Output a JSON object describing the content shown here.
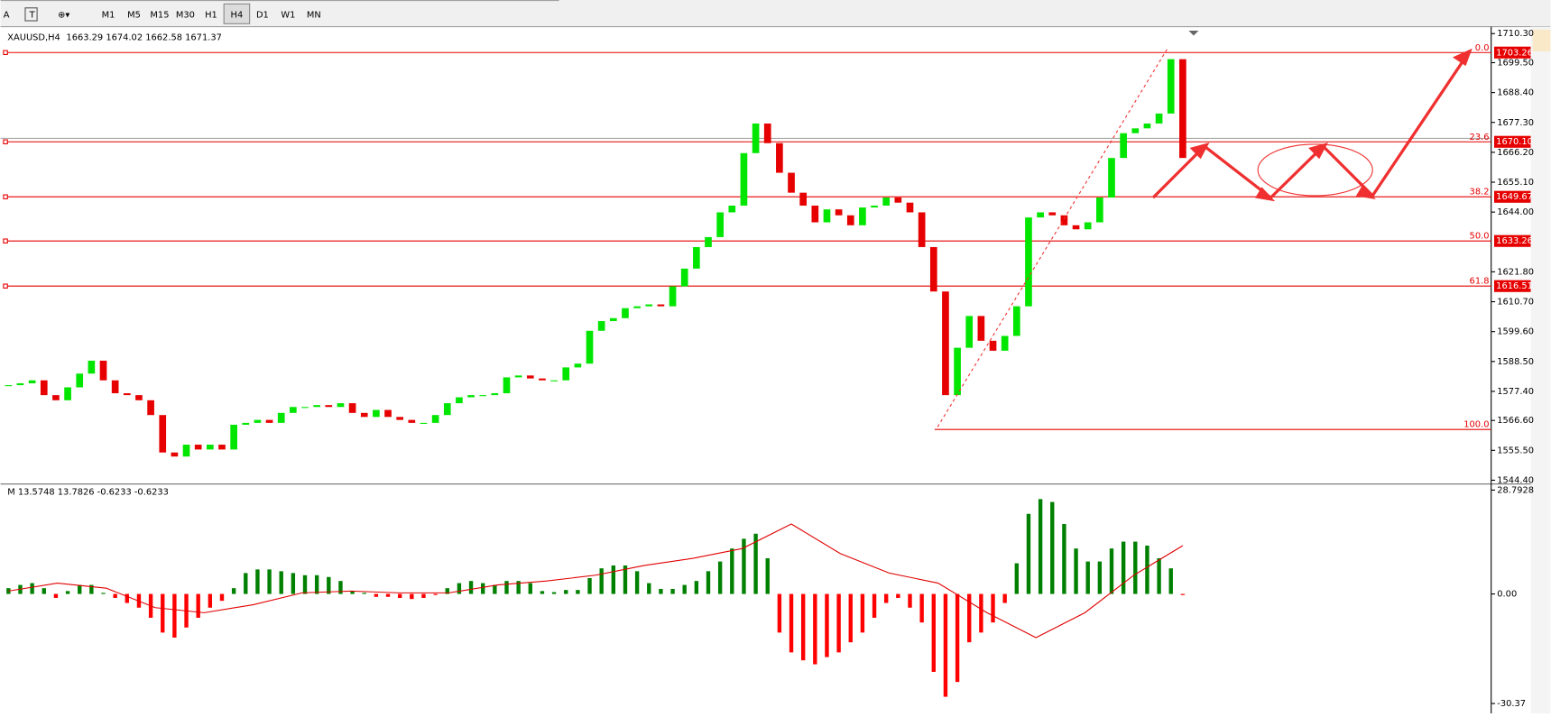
{
  "toolbar": {
    "tools": [
      "A",
      "T"
    ],
    "timeframes": [
      "M1",
      "M5",
      "M15",
      "M30",
      "H1",
      "H4",
      "D1",
      "W1",
      "MN"
    ],
    "active": 5
  },
  "chart_data": [
    {
      "type": "candlestick",
      "title": "XAUUSD,H4",
      "quote": "1663.29 1674.02 1662.58 1671.37",
      "close": [
        1579.7,
        1580.4,
        1581.5,
        1576.0,
        1574.1,
        1578.9,
        1584.0,
        1588.8,
        1581.5,
        1576.7,
        1576.0,
        1574.1,
        1568.6,
        1554.7,
        1553.2,
        1557.6,
        1555.8,
        1557.6,
        1555.8,
        1565.0,
        1565.7,
        1566.8,
        1565.7,
        1569.4,
        1571.6,
        1571.6,
        1572.3,
        1571.6,
        1573.0,
        1569.4,
        1567.9,
        1570.5,
        1567.9,
        1566.8,
        1565.7,
        1565.7,
        1568.6,
        1573.0,
        1575.2,
        1576.0,
        1576.0,
        1576.7,
        1582.6,
        1583.3,
        1582.2,
        1581.5,
        1581.5,
        1586.3,
        1587.7,
        1599.9,
        1603.5,
        1604.6,
        1608.3,
        1609.0,
        1609.7,
        1609.0,
        1616.4,
        1623.0,
        1631.0,
        1634.7,
        1643.9,
        1646.4,
        1665.9,
        1676.9,
        1669.6,
        1658.6,
        1651.2,
        1646.4,
        1640.2,
        1645.0,
        1642.8,
        1639.1,
        1645.7,
        1646.4,
        1649.4,
        1647.5,
        1643.9,
        1631.0,
        1614.5,
        1576.0,
        1593.6,
        1605.4,
        1596.2,
        1592.5,
        1598.0,
        1609.0,
        1642.0,
        1643.9,
        1642.8,
        1639.1,
        1637.6,
        1640.2,
        1649.4,
        1664.1,
        1673.3,
        1675.1,
        1676.9,
        1680.6,
        1700.8,
        1664.1
      ],
      "colors": {
        "up": "#00e600",
        "down": "#e60000",
        "level": "#e60000"
      },
      "bid": 1671.37,
      "ylim": [
        1544.4,
        1710.3
      ],
      "yticks": [
        {
          "value": 1710.3,
          "label": "1710.30"
        },
        {
          "value": 1699.5,
          "label": "1699.50"
        },
        {
          "value": 1688.4,
          "label": "1688.40"
        },
        {
          "value": 1677.3,
          "label": "1677.30"
        },
        {
          "value": 1666.2,
          "label": "1666.20"
        },
        {
          "value": 1655.1,
          "label": "1655.10"
        },
        {
          "value": 1644,
          "label": "1644.00"
        },
        {
          "value": 1621.8,
          "label": "1621.80"
        },
        {
          "value": 1610.7,
          "label": "1610.70"
        },
        {
          "value": 1599.6,
          "label": "1599.60"
        },
        {
          "value": 1588.5,
          "label": "1588.50"
        },
        {
          "value": 1577.4,
          "label": "1577.40"
        },
        {
          "value": 1566.6,
          "label": "1566.60"
        },
        {
          "value": 1555.5,
          "label": "1555.50"
        },
        {
          "value": 1544.4,
          "label": "1544.40"
        }
      ],
      "fib_levels": [
        {
          "level": "0.0",
          "price": {
            "value": 1703.26,
            "label": "1703.26"
          }
        },
        {
          "level": "23.6",
          "price": {
            "value": 1670.1,
            "label": "1670.10"
          }
        },
        {
          "level": "38.2",
          "price": {
            "value": 1649.67,
            "label": "1649.67"
          }
        },
        {
          "level": "50.0",
          "price": {
            "value": 1633.26,
            "label": "1633.26"
          }
        },
        {
          "level": "61.8",
          "price": {
            "value": 1616.51,
            "label": "1616.51"
          }
        },
        {
          "level": "100.0",
          "price": {
            "value": 1563.26
          }
        }
      ]
    },
    {
      "type": "bar",
      "title": "M 13.5748 13.7826 -0.6233 -0.6233",
      "values": [
        1.6,
        2.5,
        3,
        1.6,
        -1.1,
        0.8,
        2.5,
        2.5,
        0.3,
        -1.1,
        -2.5,
        -3.8,
        -6.6,
        -10.7,
        -12.1,
        -9.3,
        -6.6,
        -3.8,
        -1.9,
        1.6,
        5.8,
        6.8,
        6.8,
        6.3,
        5.8,
        5.2,
        5.2,
        4.7,
        3.6,
        0.8,
        0.3,
        -0.8,
        -0.8,
        -1.1,
        -1.4,
        -1.1,
        -0.3,
        1.6,
        3,
        3.6,
        3,
        2.5,
        3.6,
        3.6,
        3,
        0.8,
        0.5,
        1.1,
        1.1,
        4.4,
        7.1,
        7.9,
        7.9,
        6.3,
        3,
        1.4,
        1.4,
        2.5,
        3.6,
        6.3,
        9,
        12.6,
        15.3,
        16.7,
        9.9,
        -10.7,
        -16.2,
        -18.4,
        -19.5,
        -17.5,
        -16.2,
        -13.4,
        -10.7,
        -6.6,
        -2.5,
        -1.1,
        -3.8,
        -7.9,
        -21.6,
        -28.5,
        -24.4,
        -13.4,
        -10.7,
        -7.9,
        -2.5,
        8.5,
        22.2,
        26.3,
        25.5,
        19.4,
        12.6,
        9,
        9,
        12.6,
        14.5,
        14.5,
        13.4,
        9.9,
        7.1,
        -0.3
      ],
      "signal": [
        0.8,
        3,
        1.6,
        -3.8,
        -5.2,
        -3,
        0.3,
        0.8,
        0.3,
        0.3,
        2.5,
        3.6,
        5.2,
        7.9,
        9.9,
        12.6,
        19.4,
        11.2,
        5.8,
        3,
        -5.2,
        -12.1,
        -5.2,
        5.2,
        13.4
      ],
      "colors": {
        "up": "#008000",
        "down": "#ff0000",
        "signal": "#e00000"
      },
      "ylim": [
        -30.37,
        28.7928
      ],
      "yticks": [
        28.7928,
        {
          "value": 0,
          "label": "0.00"
        },
        -30.37
      ]
    }
  ]
}
